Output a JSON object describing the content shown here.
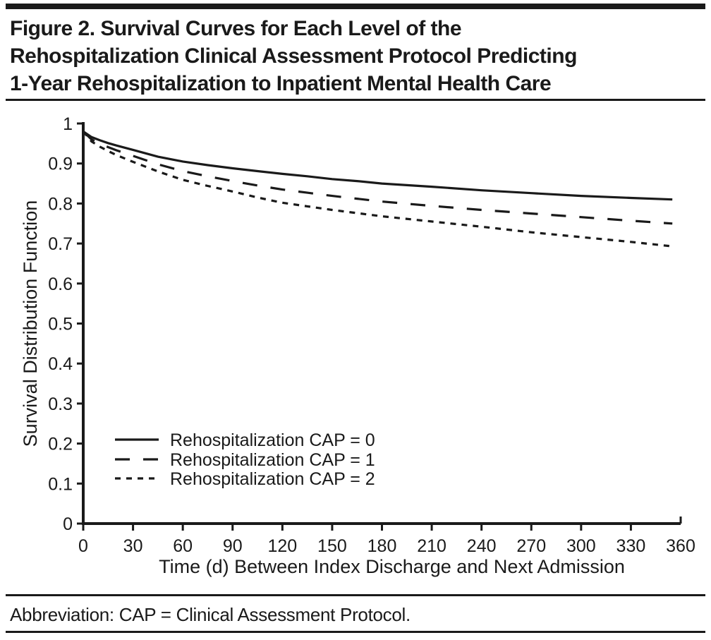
{
  "page": {
    "title_lines": [
      "Figure 2. Survival Curves for Each Level of the",
      "Rehospitalization Clinical Assessment Protocol Predicting",
      "1-Year Rehospitalization to Inpatient Mental Health Care"
    ],
    "footer_note": "Abbreviation: CAP = Clinical Assessment Protocol.",
    "ink_color": "#1a1a1a",
    "background_color": "#ffffff"
  },
  "chart_data": {
    "type": "line",
    "title": "",
    "xlabel": "Time (d) Between Index Discharge and Next Admission",
    "ylabel": "Survival Distribution Function",
    "xlim": [
      0,
      360
    ],
    "ylim": [
      0,
      1
    ],
    "grid": false,
    "legend_position": "inside-lower-left",
    "xticks": [
      0,
      30,
      60,
      90,
      120,
      150,
      180,
      210,
      240,
      270,
      300,
      330,
      360
    ],
    "xtick_labels": [
      "0",
      "30",
      "60",
      "90",
      "120",
      "150",
      "180",
      "210",
      "240",
      "270",
      "300",
      "330",
      "360"
    ],
    "yticks": [
      0,
      0.1,
      0.2,
      0.3,
      0.4,
      0.5,
      0.6,
      0.7,
      0.8,
      0.9,
      1
    ],
    "ytick_labels": [
      "0",
      "0.1",
      "0.2",
      "0.3",
      "0.4",
      "0.5",
      "0.6",
      "0.7",
      "0.8",
      "0.9",
      "1"
    ],
    "x": [
      0,
      5,
      10,
      15,
      20,
      30,
      45,
      60,
      75,
      90,
      105,
      120,
      135,
      150,
      165,
      180,
      210,
      240,
      270,
      300,
      330,
      355
    ],
    "series": [
      {
        "name": "Rehospitalization CAP = 0",
        "dash": "solid",
        "color": "#1a1a1a",
        "values": [
          0.98,
          0.966,
          0.958,
          0.951,
          0.945,
          0.934,
          0.917,
          0.905,
          0.896,
          0.888,
          0.881,
          0.874,
          0.868,
          0.861,
          0.856,
          0.85,
          0.842,
          0.833,
          0.826,
          0.819,
          0.814,
          0.81
        ]
      },
      {
        "name": "Rehospitalization CAP = 1",
        "dash": "long-dash",
        "color": "#1a1a1a",
        "values": [
          0.98,
          0.96,
          0.95,
          0.941,
          0.933,
          0.919,
          0.898,
          0.881,
          0.868,
          0.856,
          0.845,
          0.835,
          0.827,
          0.819,
          0.812,
          0.805,
          0.794,
          0.784,
          0.775,
          0.766,
          0.757,
          0.75
        ]
      },
      {
        "name": "Rehospitalization CAP = 2",
        "dash": "short-dash",
        "color": "#1a1a1a",
        "values": [
          0.98,
          0.955,
          0.942,
          0.931,
          0.921,
          0.904,
          0.88,
          0.859,
          0.844,
          0.83,
          0.815,
          0.802,
          0.793,
          0.784,
          0.776,
          0.768,
          0.755,
          0.742,
          0.728,
          0.716,
          0.704,
          0.693
        ]
      }
    ]
  }
}
